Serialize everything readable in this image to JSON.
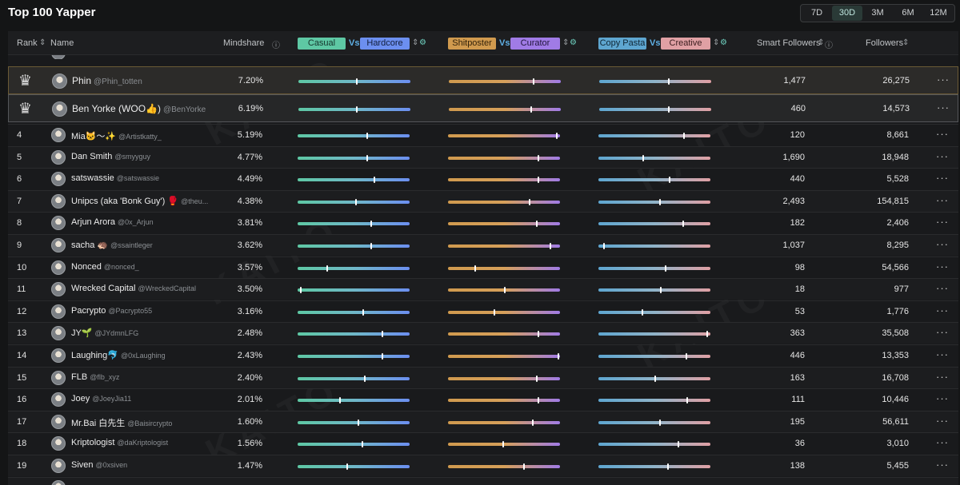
{
  "header": {
    "title": "Top 100 Yapper",
    "ranges": [
      "7D",
      "30D",
      "3M",
      "6M",
      "12M"
    ],
    "active_range": "30D"
  },
  "columns": {
    "rank": "Rank",
    "name": "Name",
    "mindshare": "Mindshare",
    "casual": "Casual",
    "vs": "Vs",
    "hardcore": "Hardcore",
    "shitposter": "Shitposter",
    "curator": "Curator",
    "copy_pasta": "Copy Pasta",
    "creative": "Creative",
    "smart_followers": "Smart Followers",
    "followers": "Followers"
  },
  "colors": {
    "casual": "#5ec8a4",
    "hardcore": "#6c8ff0",
    "shitposter": "#d09a4e",
    "curator": "#a07be6",
    "copy_pasta": "#5ea6d0",
    "creative": "#e0a0a4"
  },
  "watermark": "KAITO",
  "rows": [
    {
      "rank": "",
      "name": "Phin",
      "handle": "@Phin_totten",
      "mindshare": "7.20%",
      "casual_hardcore": 0.52,
      "shit_curator": 0.76,
      "copy_creative": 0.62,
      "smart_followers": "1,477",
      "followers": "26,275"
    },
    {
      "rank": "",
      "name": "Ben Yorke (WOO👍)",
      "handle": "@BenYorke",
      "mindshare": "6.19%",
      "casual_hardcore": 0.52,
      "shit_curator": 0.74,
      "copy_creative": 0.62,
      "smart_followers": "460",
      "followers": "14,573"
    },
    {
      "rank": "4",
      "name": "Mia🐱〜✨",
      "handle": "@Artistkatty_",
      "mindshare": "5.19%",
      "casual_hardcore": 0.62,
      "shit_curator": 0.98,
      "copy_creative": 0.77,
      "smart_followers": "120",
      "followers": "8,661"
    },
    {
      "rank": "5",
      "name": "Dan Smith",
      "handle": "@smyyguy",
      "mindshare": "4.77%",
      "casual_hardcore": 0.62,
      "shit_curator": 0.81,
      "copy_creative": 0.4,
      "smart_followers": "1,690",
      "followers": "18,948"
    },
    {
      "rank": "6",
      "name": "satswassie",
      "handle": "@satswassie",
      "mindshare": "4.49%",
      "casual_hardcore": 0.69,
      "shit_curator": 0.81,
      "copy_creative": 0.64,
      "smart_followers": "440",
      "followers": "5,528"
    },
    {
      "rank": "7",
      "name": "Unipcs (aka 'Bonk Guy') 🥊",
      "handle": "@theu...",
      "mindshare": "4.38%",
      "casual_hardcore": 0.52,
      "shit_curator": 0.73,
      "copy_creative": 0.55,
      "smart_followers": "2,493",
      "followers": "154,815"
    },
    {
      "rank": "8",
      "name": "Arjun Arora",
      "handle": "@0x_Arjun",
      "mindshare": "3.81%",
      "casual_hardcore": 0.66,
      "shit_curator": 0.8,
      "copy_creative": 0.76,
      "smart_followers": "182",
      "followers": "2,406"
    },
    {
      "rank": "9",
      "name": "sacha 🦔",
      "handle": "@ssaintleger",
      "mindshare": "3.62%",
      "casual_hardcore": 0.66,
      "shit_curator": 0.92,
      "copy_creative": 0.04,
      "smart_followers": "1,037",
      "followers": "8,295"
    },
    {
      "rank": "10",
      "name": "Nonced",
      "handle": "@nonced_",
      "mindshare": "3.57%",
      "casual_hardcore": 0.26,
      "shit_curator": 0.24,
      "copy_creative": 0.6,
      "smart_followers": "98",
      "followers": "54,566"
    },
    {
      "rank": "11",
      "name": "Wrecked Capital",
      "handle": "@WreckedCapital",
      "mindshare": "3.50%",
      "casual_hardcore": 0.02,
      "shit_curator": 0.51,
      "copy_creative": 0.56,
      "smart_followers": "18",
      "followers": "977"
    },
    {
      "rank": "12",
      "name": "Pacrypto",
      "handle": "@Pacrypto55",
      "mindshare": "3.16%",
      "casual_hardcore": 0.59,
      "shit_curator": 0.41,
      "copy_creative": 0.39,
      "smart_followers": "53",
      "followers": "1,776"
    },
    {
      "rank": "13",
      "name": "JY🌱",
      "handle": "@JYdmnLFG",
      "mindshare": "2.48%",
      "casual_hardcore": 0.76,
      "shit_curator": 0.81,
      "copy_creative": 0.98,
      "smart_followers": "363",
      "followers": "35,508"
    },
    {
      "rank": "14",
      "name": "Laughing🐬",
      "handle": "@0xLaughing",
      "mindshare": "2.43%",
      "casual_hardcore": 0.76,
      "shit_curator": 0.99,
      "copy_creative": 0.79,
      "smart_followers": "446",
      "followers": "13,353"
    },
    {
      "rank": "15",
      "name": "FLB",
      "handle": "@flb_xyz",
      "mindshare": "2.40%",
      "casual_hardcore": 0.6,
      "shit_curator": 0.8,
      "copy_creative": 0.51,
      "smart_followers": "163",
      "followers": "16,708"
    },
    {
      "rank": "16",
      "name": "Joey",
      "handle": "@JoeyJia11",
      "mindshare": "2.01%",
      "casual_hardcore": 0.38,
      "shit_curator": 0.81,
      "copy_creative": 0.8,
      "smart_followers": "111",
      "followers": "10,446"
    },
    {
      "rank": "17",
      "name": "Mr.Bai 白先生",
      "handle": "@Baisircrypto",
      "mindshare": "1.60%",
      "casual_hardcore": 0.54,
      "shit_curator": 0.76,
      "copy_creative": 0.55,
      "smart_followers": "195",
      "followers": "56,611"
    },
    {
      "rank": "18",
      "name": "Kriptologist",
      "handle": "@daKriptologist",
      "mindshare": "1.56%",
      "casual_hardcore": 0.58,
      "shit_curator": 0.49,
      "copy_creative": 0.72,
      "smart_followers": "36",
      "followers": "3,010"
    },
    {
      "rank": "19",
      "name": "Siven",
      "handle": "@0xsiven",
      "mindshare": "1.47%",
      "casual_hardcore": 0.44,
      "shit_curator": 0.68,
      "copy_creative": 0.62,
      "smart_followers": "138",
      "followers": "5,455"
    }
  ]
}
